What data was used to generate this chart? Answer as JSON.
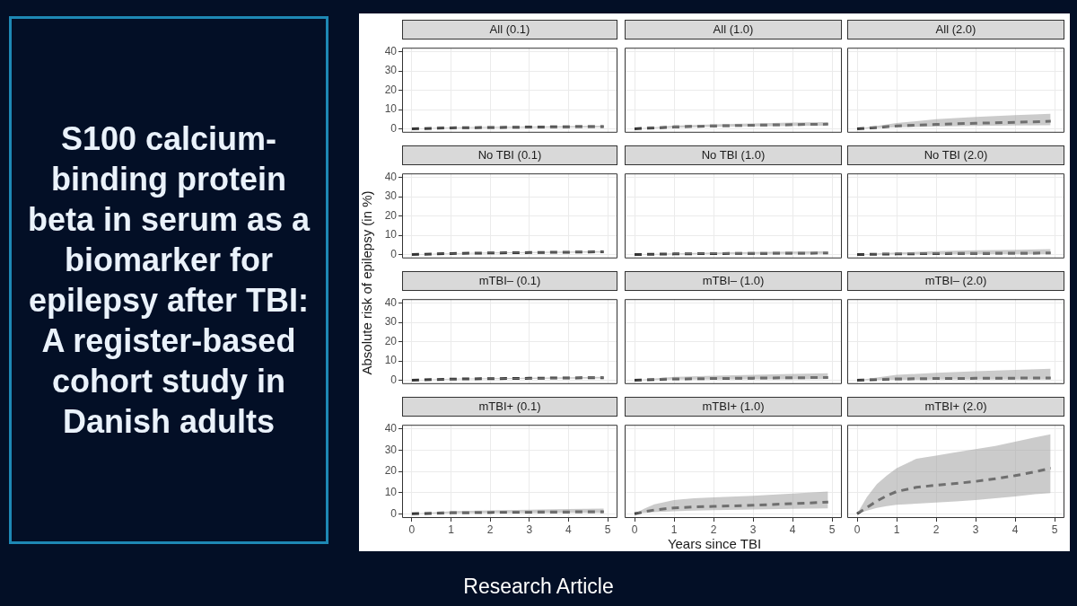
{
  "chart_data": [
    {
      "type": "other",
      "title": "S100 calcium-binding protein beta in serum as a biomarker for epilepsy after TBI: A register-based cohort study in Danish adults",
      "annotations": [
        "Research Article"
      ]
    },
    {
      "type": "line",
      "title": "All (0.1)",
      "ylabel": "Absolute risk of epilepsy (in %)",
      "tick_labels": "y",
      "xlim": [
        -0.25,
        5.25
      ],
      "ylim": [
        -2,
        42
      ],
      "xticks": [
        0,
        1,
        2,
        3,
        4,
        5
      ],
      "yticks": [
        0,
        10,
        20,
        30,
        40
      ],
      "grid": true,
      "marker": "none",
      "line_style": "dashed",
      "x": [
        0,
        1,
        2,
        3,
        4,
        4.9
      ],
      "series": [
        {
          "color": "#333333",
          "values": [
            0,
            0.5,
            0.7,
            0.9,
            1.1,
            1.2
          ],
          "lower": [
            0,
            0.3,
            0.5,
            0.6,
            0.7,
            0.8
          ],
          "upper": [
            0,
            0.8,
            1.0,
            1.2,
            1.4,
            1.6
          ]
        }
      ]
    },
    {
      "type": "line",
      "title": "All (1.0)",
      "tick_labels": false,
      "xlim": [
        -0.25,
        5.25
      ],
      "ylim": [
        -2,
        42
      ],
      "xticks": [
        0,
        1,
        2,
        3,
        4,
        5
      ],
      "yticks": [
        0,
        10,
        20,
        30,
        40
      ],
      "grid": true,
      "marker": "none",
      "line_style": "dashed",
      "x": [
        0,
        1,
        2,
        3,
        4,
        4.9
      ],
      "series": [
        {
          "color": "#333333",
          "values": [
            0,
            1.0,
            1.5,
            1.9,
            2.2,
            2.4
          ],
          "lower": [
            0,
            0.6,
            1.0,
            1.3,
            1.5,
            1.6
          ],
          "upper": [
            0,
            1.6,
            2.3,
            2.8,
            3.2,
            3.5
          ]
        }
      ]
    },
    {
      "type": "line",
      "title": "All (2.0)",
      "tick_labels": false,
      "xlim": [
        -0.25,
        5.25
      ],
      "ylim": [
        -2,
        42
      ],
      "xticks": [
        0,
        1,
        2,
        3,
        4,
        5
      ],
      "yticks": [
        0,
        10,
        20,
        30,
        40
      ],
      "grid": true,
      "marker": "none",
      "line_style": "dashed",
      "x": [
        0,
        1,
        2,
        3,
        4,
        4.9
      ],
      "series": [
        {
          "color": "#333333",
          "values": [
            0,
            1.5,
            2.3,
            2.9,
            3.4,
            3.9
          ],
          "lower": [
            0,
            0.8,
            1.2,
            1.5,
            1.7,
            1.9
          ],
          "upper": [
            0,
            3.0,
            5.0,
            6.2,
            7.1,
            7.8
          ]
        }
      ]
    },
    {
      "type": "line",
      "title": "No TBI (0.1)",
      "tick_labels": "y",
      "xlim": [
        -0.25,
        5.25
      ],
      "ylim": [
        -2,
        42
      ],
      "xticks": [
        0,
        1,
        2,
        3,
        4,
        5
      ],
      "yticks": [
        0,
        10,
        20,
        30,
        40
      ],
      "grid": true,
      "marker": "none",
      "line_style": "dashed",
      "x": [
        0,
        1,
        2,
        3,
        4,
        4.9
      ],
      "series": [
        {
          "color": "#333333",
          "values": [
            0,
            0.5,
            0.8,
            1.0,
            1.2,
            1.4
          ],
          "lower": [
            0,
            0.3,
            0.6,
            0.8,
            0.9,
            1.0
          ],
          "upper": [
            0,
            0.7,
            1.0,
            1.3,
            1.5,
            1.7
          ]
        }
      ]
    },
    {
      "type": "line",
      "title": "No TBI (1.0)",
      "tick_labels": false,
      "xlim": [
        -0.25,
        5.25
      ],
      "ylim": [
        -2,
        42
      ],
      "xticks": [
        0,
        1,
        2,
        3,
        4,
        5
      ],
      "yticks": [
        0,
        10,
        20,
        30,
        40
      ],
      "grid": true,
      "marker": "none",
      "line_style": "dashed",
      "x": [
        0,
        1,
        2,
        3,
        4,
        4.9
      ],
      "series": [
        {
          "color": "#333333",
          "values": [
            0,
            0.3,
            0.5,
            0.6,
            0.7,
            0.8
          ],
          "lower": [
            0,
            0.1,
            0.2,
            0.3,
            0.3,
            0.3
          ],
          "upper": [
            0,
            0.6,
            1.0,
            1.3,
            1.5,
            1.7
          ]
        }
      ]
    },
    {
      "type": "line",
      "title": "No TBI (2.0)",
      "tick_labels": false,
      "xlim": [
        -0.25,
        5.25
      ],
      "ylim": [
        -2,
        42
      ],
      "xticks": [
        0,
        1,
        2,
        3,
        4,
        5
      ],
      "yticks": [
        0,
        10,
        20,
        30,
        40
      ],
      "grid": true,
      "marker": "none",
      "line_style": "dashed",
      "x": [
        0,
        1,
        2,
        3,
        4,
        4.9
      ],
      "series": [
        {
          "color": "#333333",
          "values": [
            0,
            0.3,
            0.5,
            0.6,
            0.7,
            0.8
          ],
          "lower": [
            0,
            0.1,
            0.1,
            0.2,
            0.2,
            0.2
          ],
          "upper": [
            0,
            1.0,
            1.7,
            2.2,
            2.5,
            2.8
          ]
        }
      ]
    },
    {
      "type": "line",
      "title": "mTBI– (0.1)",
      "tick_labels": "y",
      "xlim": [
        -0.25,
        5.25
      ],
      "ylim": [
        -2,
        42
      ],
      "xticks": [
        0,
        1,
        2,
        3,
        4,
        5
      ],
      "yticks": [
        0,
        10,
        20,
        30,
        40
      ],
      "grid": true,
      "marker": "none",
      "line_style": "dashed",
      "x": [
        0,
        1,
        2,
        3,
        4,
        4.9
      ],
      "series": [
        {
          "color": "#333333",
          "values": [
            0,
            0.6,
            0.8,
            1.0,
            1.2,
            1.3
          ],
          "lower": [
            0,
            0.4,
            0.6,
            0.7,
            0.8,
            0.9
          ],
          "upper": [
            0,
            0.8,
            1.1,
            1.3,
            1.5,
            1.7
          ]
        }
      ]
    },
    {
      "type": "line",
      "title": "mTBI– (1.0)",
      "tick_labels": false,
      "xlim": [
        -0.25,
        5.25
      ],
      "ylim": [
        -2,
        42
      ],
      "xticks": [
        0,
        1,
        2,
        3,
        4,
        5
      ],
      "yticks": [
        0,
        10,
        20,
        30,
        40
      ],
      "grid": true,
      "marker": "none",
      "line_style": "dashed",
      "x": [
        0,
        1,
        2,
        3,
        4,
        4.9
      ],
      "series": [
        {
          "color": "#333333",
          "values": [
            0,
            0.7,
            0.9,
            1.1,
            1.3,
            1.4
          ],
          "lower": [
            0,
            0.3,
            0.4,
            0.5,
            0.5,
            0.6
          ],
          "upper": [
            0,
            1.7,
            2.3,
            2.8,
            3.2,
            3.6
          ]
        }
      ]
    },
    {
      "type": "line",
      "title": "mTBI– (2.0)",
      "tick_labels": false,
      "xlim": [
        -0.25,
        5.25
      ],
      "ylim": [
        -2,
        42
      ],
      "xticks": [
        0,
        1,
        2,
        3,
        4,
        5
      ],
      "yticks": [
        0,
        10,
        20,
        30,
        40
      ],
      "grid": true,
      "marker": "none",
      "line_style": "dashed",
      "x": [
        0,
        1,
        2,
        3,
        4,
        4.9
      ],
      "series": [
        {
          "color": "#333333",
          "values": [
            0,
            0.7,
            0.9,
            1.0,
            1.1,
            1.2
          ],
          "lower": [
            0,
            0.2,
            0.3,
            0.3,
            0.3,
            0.3
          ],
          "upper": [
            0,
            2.8,
            3.8,
            4.6,
            5.3,
            5.9
          ]
        }
      ]
    },
    {
      "type": "line",
      "title": "mTBI+ (0.1)",
      "xlim": [
        -0.25,
        5.25
      ],
      "ylim": [
        -2,
        42
      ],
      "xticks": [
        0,
        1,
        2,
        3,
        4,
        5
      ],
      "yticks": [
        0,
        10,
        20,
        30,
        40
      ],
      "grid": true,
      "marker": "none",
      "line_style": "dashed",
      "x": [
        0,
        1,
        2,
        3,
        4,
        4.9
      ],
      "series": [
        {
          "color": "#333333",
          "values": [
            0,
            0.5,
            0.7,
            0.8,
            0.9,
            1.0
          ],
          "lower": [
            0,
            0.2,
            0.3,
            0.3,
            0.4,
            0.4
          ],
          "upper": [
            0,
            1.2,
            1.6,
            1.9,
            2.2,
            2.5
          ]
        }
      ]
    },
    {
      "type": "line",
      "title": "mTBI+ (1.0)",
      "xlabel": "Years since TBI",
      "tick_labels": "x",
      "xlim": [
        -0.25,
        5.25
      ],
      "ylim": [
        -2,
        42
      ],
      "xticks": [
        0,
        1,
        2,
        3,
        4,
        5
      ],
      "yticks": [
        0,
        10,
        20,
        30,
        40
      ],
      "grid": true,
      "marker": "none",
      "line_style": "dashed",
      "x": [
        0,
        0.25,
        0.5,
        1,
        1.5,
        2,
        3,
        4,
        4.9
      ],
      "series": [
        {
          "color": "#333333",
          "values": [
            0,
            1.0,
            1.8,
            2.8,
            3.2,
            3.5,
            4.0,
            4.8,
            5.5
          ],
          "lower": [
            0,
            0.4,
            0.8,
            1.2,
            1.5,
            1.7,
            2.0,
            2.3,
            2.6
          ],
          "upper": [
            0,
            2.5,
            4.5,
            6.5,
            7.3,
            7.8,
            8.5,
            9.5,
            10.5
          ]
        }
      ]
    },
    {
      "type": "line",
      "title": "mTBI+ (2.0)",
      "tick_labels": "x",
      "xlim": [
        -0.25,
        5.25
      ],
      "ylim": [
        -2,
        42
      ],
      "xticks": [
        0,
        1,
        2,
        3,
        4,
        5
      ],
      "yticks": [
        0,
        10,
        20,
        30,
        40
      ],
      "grid": true,
      "marker": "none",
      "line_style": "dashed",
      "x": [
        0,
        0.25,
        0.5,
        0.75,
        1,
        1.5,
        2,
        2.5,
        3,
        3.5,
        4,
        4.5,
        4.9
      ],
      "series": [
        {
          "color": "#333333",
          "values": [
            0,
            3,
            6,
            8.5,
            10.5,
            12.5,
            13.5,
            14.3,
            15.3,
            16.5,
            18,
            19.8,
            21.5
          ],
          "lower": [
            0,
            1.5,
            2.8,
            3.6,
            4.2,
            4.8,
            5.3,
            5.8,
            6.5,
            7.3,
            8.2,
            9.2,
            9.8
          ],
          "upper": [
            0,
            8,
            14,
            18,
            21.5,
            26,
            27.5,
            29,
            30.5,
            32,
            34,
            36,
            37.5
          ]
        }
      ]
    }
  ]
}
